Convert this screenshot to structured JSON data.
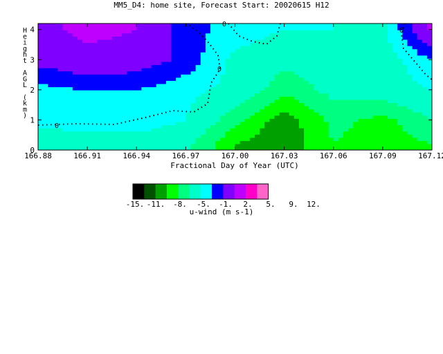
{
  "chart_data": {
    "type": "heatmap",
    "title": "MM5_D4: home site,  Forecast Start: 20020615 H12",
    "xlabel": "Fractional Day of Year (UTC)",
    "ylabel": "Height AGL (km)",
    "xlim": [
      166.88,
      167.12
    ],
    "ylim": [
      0,
      4.2
    ],
    "x_ticks": [
      "166.88",
      "166.91",
      "166.94",
      "166.97",
      "167.00",
      "167.03",
      "167.06",
      "167.09",
      "167.12"
    ],
    "y_ticks": [
      "0",
      "1",
      "2",
      "3",
      "4"
    ],
    "contour_labels": [
      "0",
      "0",
      "0",
      "0"
    ],
    "colorbar": {
      "label": "u-wind (m s-1)",
      "tick_labels": [
        "-15.",
        "-11.",
        "-8.",
        "-5.",
        "-1.",
        "2.",
        "5.",
        "9.",
        "12."
      ],
      "colors": [
        "#000000",
        "#005000",
        "#00A000",
        "#00FF00",
        "#00FF80",
        "#00FFC8",
        "#00FFFF",
        "#0000FF",
        "#8000FF",
        "#C000FF",
        "#FF00C8",
        "#FF64C8"
      ]
    },
    "x": [
      166.88,
      166.91,
      166.94,
      166.97,
      167.0,
      167.03,
      167.06,
      167.09,
      167.12
    ],
    "y": [
      0.2,
      1.0,
      2.0,
      3.0,
      4.0
    ],
    "z": [
      [
        -3,
        -2,
        -3,
        -4,
        -11,
        -13,
        -8,
        -10,
        -8
      ],
      [
        0,
        0,
        1,
        -1,
        -7,
        -13,
        -7,
        -9,
        -5
      ],
      [
        1,
        2,
        2,
        0,
        -2,
        -7,
        -4,
        -3,
        -1
      ],
      [
        6,
        8,
        7,
        4,
        -2,
        -4,
        -3,
        -3,
        2
      ],
      [
        8,
        10,
        9,
        3,
        1,
        -1,
        -1,
        -2,
        10
      ]
    ]
  }
}
